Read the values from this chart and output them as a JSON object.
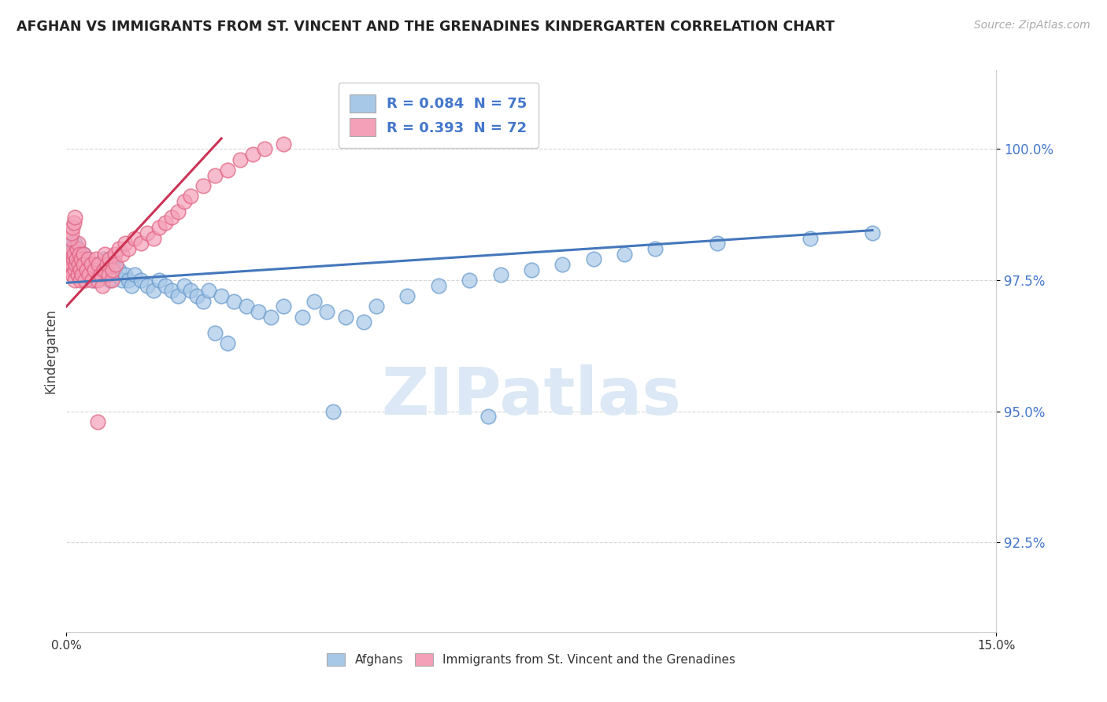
{
  "title": "AFGHAN VS IMMIGRANTS FROM ST. VINCENT AND THE GRENADINES KINDERGARTEN CORRELATION CHART",
  "source": "Source: ZipAtlas.com",
  "ylabel": "Kindergarten",
  "xlim": [
    0.0,
    15.0
  ],
  "ylim": [
    90.8,
    101.5
  ],
  "yticks": [
    92.5,
    95.0,
    97.5,
    100.0
  ],
  "ytick_labels": [
    "92.5%",
    "95.0%",
    "97.5%",
    "100.0%"
  ],
  "legend_labels": [
    "R = 0.084  N = 75",
    "R = 0.393  N = 72"
  ],
  "legend_series": [
    "Afghans",
    "Immigrants from St. Vincent and the Grenadines"
  ],
  "blue_color": "#a8c8e8",
  "pink_color": "#f4a0b8",
  "blue_edge_color": "#6699cc",
  "pink_edge_color": "#e06080",
  "blue_line_color": "#4477bb",
  "pink_line_color": "#cc3355",
  "title_color": "#222222",
  "source_color": "#aaaaaa",
  "watermark_color": "#dce8f5",
  "background_color": "#ffffff",
  "blue_scatter_x": [
    0.05,
    0.07,
    0.08,
    0.09,
    0.1,
    0.11,
    0.12,
    0.13,
    0.14,
    0.15,
    0.16,
    0.17,
    0.18,
    0.2,
    0.22,
    0.25,
    0.28,
    0.3,
    0.35,
    0.38,
    0.4,
    0.45,
    0.5,
    0.55,
    0.6,
    0.65,
    0.7,
    0.75,
    0.8,
    0.85,
    0.9,
    0.95,
    1.0,
    1.05,
    1.1,
    1.2,
    1.3,
    1.4,
    1.5,
    1.6,
    1.7,
    1.8,
    1.9,
    2.0,
    2.1,
    2.2,
    2.3,
    2.5,
    2.7,
    2.9,
    3.1,
    3.3,
    3.5,
    3.8,
    4.0,
    4.2,
    4.5,
    4.8,
    5.0,
    5.5,
    6.0,
    6.5,
    7.0,
    7.5,
    8.0,
    8.5,
    9.0,
    9.5,
    10.5,
    12.0,
    13.0,
    2.4,
    2.6,
    4.3,
    6.8
  ],
  "blue_scatter_y": [
    98.0,
    97.9,
    98.1,
    98.2,
    98.0,
    97.8,
    98.1,
    97.9,
    98.2,
    98.0,
    97.7,
    97.9,
    98.1,
    97.8,
    97.6,
    97.9,
    98.0,
    97.8,
    97.7,
    97.6,
    97.8,
    97.5,
    97.7,
    97.6,
    97.9,
    97.7,
    97.5,
    97.8,
    97.6,
    97.7,
    97.5,
    97.6,
    97.5,
    97.4,
    97.6,
    97.5,
    97.4,
    97.3,
    97.5,
    97.4,
    97.3,
    97.2,
    97.4,
    97.3,
    97.2,
    97.1,
    97.3,
    97.2,
    97.1,
    97.0,
    96.9,
    96.8,
    97.0,
    96.8,
    97.1,
    96.9,
    96.8,
    96.7,
    97.0,
    97.2,
    97.4,
    97.5,
    97.6,
    97.7,
    97.8,
    97.9,
    98.0,
    98.1,
    98.2,
    98.3,
    98.4,
    96.5,
    96.3,
    95.0,
    94.9
  ],
  "pink_scatter_x": [
    0.04,
    0.05,
    0.06,
    0.07,
    0.08,
    0.09,
    0.1,
    0.11,
    0.12,
    0.13,
    0.14,
    0.15,
    0.16,
    0.17,
    0.18,
    0.19,
    0.2,
    0.21,
    0.22,
    0.23,
    0.24,
    0.25,
    0.27,
    0.28,
    0.3,
    0.32,
    0.35,
    0.37,
    0.4,
    0.42,
    0.45,
    0.48,
    0.5,
    0.52,
    0.55,
    0.58,
    0.6,
    0.62,
    0.65,
    0.68,
    0.7,
    0.73,
    0.75,
    0.78,
    0.8,
    0.85,
    0.9,
    0.95,
    1.0,
    1.1,
    1.2,
    1.3,
    1.4,
    1.5,
    1.6,
    1.7,
    1.8,
    1.9,
    2.0,
    2.2,
    2.4,
    2.6,
    2.8,
    3.0,
    3.2,
    3.5,
    0.06,
    0.08,
    0.1,
    0.12,
    0.14,
    0.5
  ],
  "pink_scatter_y": [
    97.8,
    97.9,
    98.0,
    97.7,
    97.8,
    98.1,
    97.6,
    97.9,
    98.0,
    97.7,
    97.5,
    97.8,
    97.9,
    98.1,
    98.2,
    97.6,
    97.8,
    98.0,
    97.7,
    97.5,
    97.9,
    97.6,
    98.0,
    97.8,
    97.5,
    97.7,
    97.9,
    97.6,
    97.8,
    97.5,
    97.7,
    97.9,
    97.5,
    97.8,
    97.6,
    97.4,
    97.7,
    98.0,
    97.8,
    97.6,
    97.9,
    97.5,
    97.7,
    98.0,
    97.8,
    98.1,
    98.0,
    98.2,
    98.1,
    98.3,
    98.2,
    98.4,
    98.3,
    98.5,
    98.6,
    98.7,
    98.8,
    99.0,
    99.1,
    99.3,
    99.5,
    99.6,
    99.8,
    99.9,
    100.0,
    100.1,
    98.3,
    98.4,
    98.5,
    98.6,
    98.7,
    94.8
  ],
  "blue_line_x": [
    0.0,
    13.0
  ],
  "blue_line_y": [
    97.45,
    98.45
  ],
  "pink_line_x": [
    0.0,
    2.5
  ],
  "pink_line_y": [
    97.0,
    100.2
  ]
}
